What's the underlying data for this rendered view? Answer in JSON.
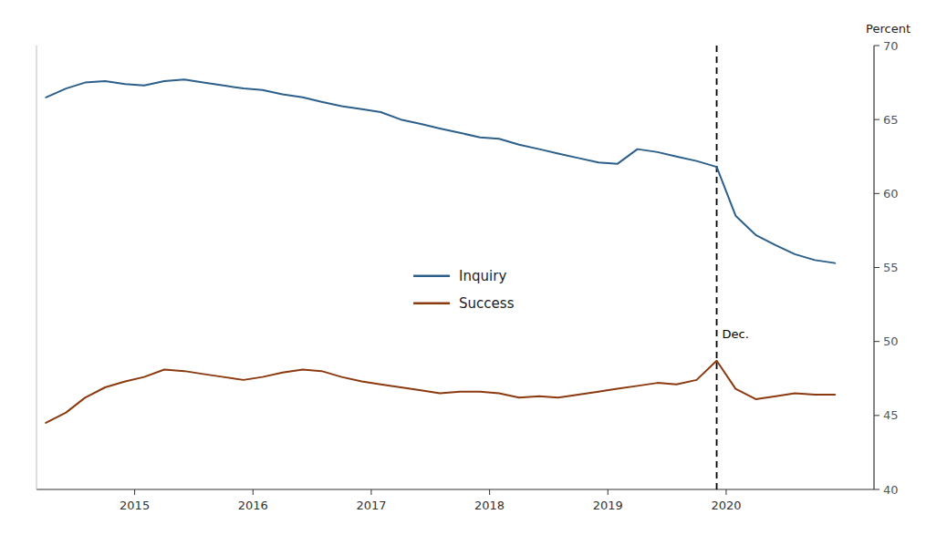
{
  "chart_data": {
    "type": "line",
    "x": [
      2014.25,
      2014.42,
      2014.58,
      2014.75,
      2014.92,
      2015.08,
      2015.25,
      2015.42,
      2015.58,
      2015.75,
      2015.92,
      2016.08,
      2016.25,
      2016.42,
      2016.58,
      2016.75,
      2016.92,
      2017.08,
      2017.25,
      2017.42,
      2017.58,
      2017.75,
      2017.92,
      2018.08,
      2018.25,
      2018.42,
      2018.58,
      2018.75,
      2018.92,
      2019.08,
      2019.25,
      2019.42,
      2019.58,
      2019.75,
      2019.92,
      2020.08,
      2020.25,
      2020.42,
      2020.58,
      2020.75,
      2020.92
    ],
    "series": [
      {
        "name": "Inquiry",
        "color": "#2c5f8a",
        "values": [
          66.5,
          67.1,
          67.5,
          67.6,
          67.4,
          67.3,
          67.6,
          67.7,
          67.5,
          67.3,
          67.1,
          67.0,
          66.7,
          66.5,
          66.2,
          65.9,
          65.7,
          65.5,
          65.0,
          64.7,
          64.4,
          64.1,
          63.8,
          63.7,
          63.3,
          63.0,
          62.7,
          62.4,
          62.1,
          62.0,
          63.0,
          62.8,
          62.5,
          62.2,
          61.8,
          58.5,
          57.2,
          56.5,
          55.9,
          55.5,
          55.3
        ]
      },
      {
        "name": "Success",
        "color": "#8B3A0F",
        "values": [
          44.5,
          45.2,
          46.2,
          46.9,
          47.3,
          47.6,
          48.1,
          48.0,
          47.8,
          47.6,
          47.4,
          47.6,
          47.9,
          48.1,
          48.0,
          47.6,
          47.3,
          47.1,
          46.9,
          46.7,
          46.5,
          46.6,
          46.6,
          46.5,
          46.2,
          46.3,
          46.2,
          46.4,
          46.6,
          46.8,
          47.0,
          47.2,
          47.1,
          47.4,
          48.7,
          46.8,
          46.1,
          46.3,
          46.5,
          46.4,
          46.4
        ]
      }
    ],
    "y_label": "Percent",
    "xlim": [
      2014.17,
      2021.25
    ],
    "ylim": [
      40,
      70
    ],
    "xticks": [
      2015,
      2016,
      2017,
      2018,
      2019,
      2020
    ],
    "yticks": [
      40,
      45,
      50,
      55,
      60,
      65,
      70
    ],
    "grid": false,
    "legend": "center",
    "reference_lines": [
      {
        "x": 2019.92,
        "line_style": "dashed"
      }
    ],
    "annotations": [
      {
        "text": "Dec.",
        "x": 2019.92,
        "y": 50.5
      }
    ]
  }
}
